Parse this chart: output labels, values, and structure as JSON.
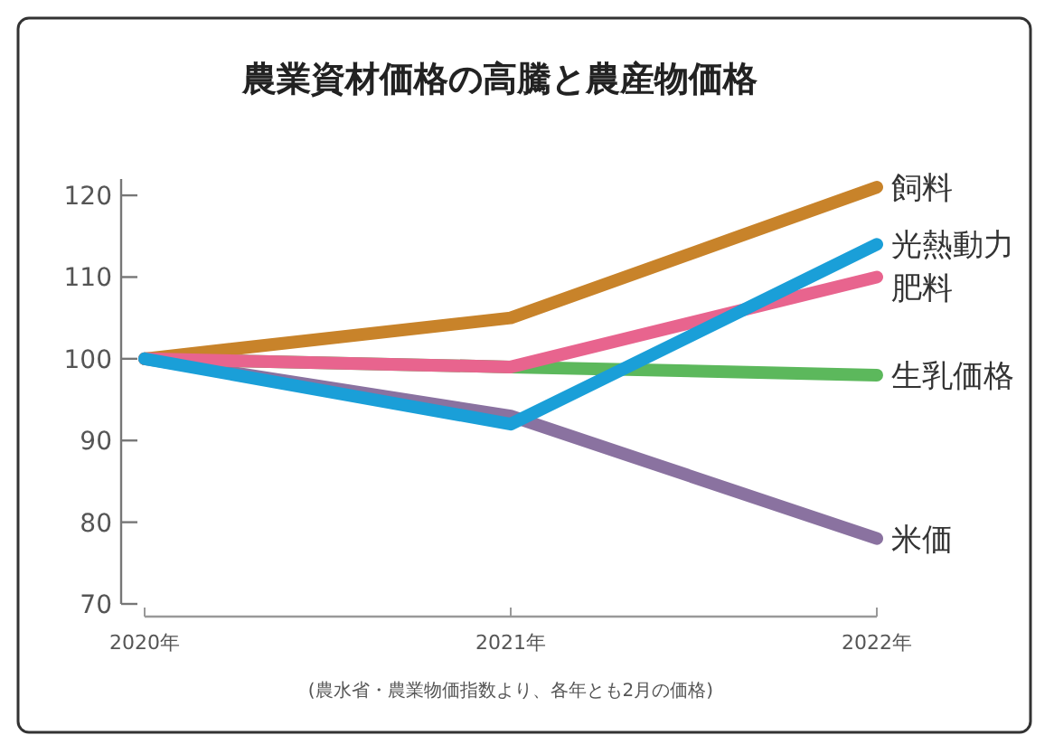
{
  "chart_data": {
    "type": "line",
    "title": "農業資材価格の高騰と農産物価格",
    "categories": [
      "2020年",
      "2021年",
      "2022年"
    ],
    "series": [
      {
        "name": "米価",
        "color": "#8a72a0",
        "values": [
          100,
          93,
          78
        ]
      },
      {
        "name": "生乳価格",
        "color": "#5cb85c",
        "values": [
          100,
          99,
          98
        ]
      },
      {
        "name": "飼料",
        "color": "#c8832a",
        "values": [
          100,
          105,
          121
        ]
      },
      {
        "name": "肥料",
        "color": "#e8648e",
        "values": [
          100,
          99,
          110
        ]
      },
      {
        "name": "光熱動力",
        "color": "#1a9fd8",
        "values": [
          100,
          92,
          114
        ]
      }
    ],
    "ylim": [
      70,
      122
    ],
    "yticks": [
      70,
      80,
      90,
      100,
      110,
      120
    ],
    "annotations": [
      "(農水省・農業物価指数より、各年とも2月の価格)"
    ],
    "legend": false,
    "grid": false,
    "marker": "none",
    "line_style": "solid"
  }
}
